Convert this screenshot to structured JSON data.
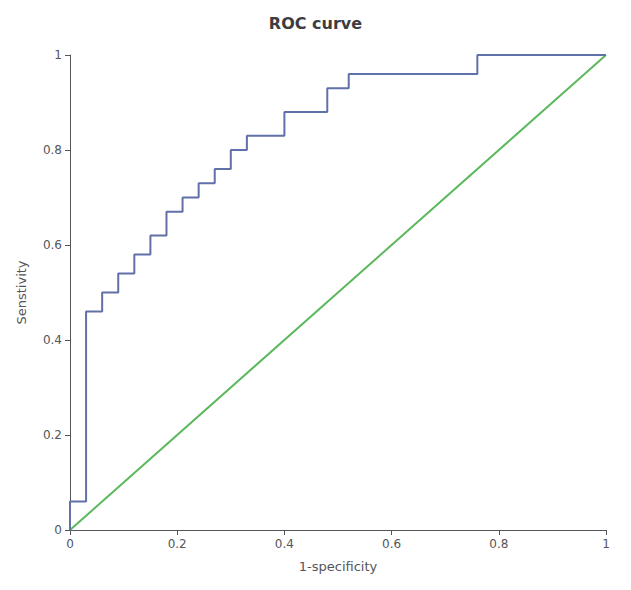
{
  "chart_data": {
    "type": "line",
    "title": "ROC curve",
    "xlabel": "1-specificity",
    "ylabel": "Senstivity",
    "xlim": [
      0.0,
      1.0
    ],
    "ylim": [
      0.0,
      1.0
    ],
    "xticks": [
      0,
      0.2,
      0.4,
      0.6,
      0.8,
      1
    ],
    "yticks": [
      0,
      0.2,
      0.4,
      0.6,
      0.8,
      1
    ],
    "grid": false,
    "series": [
      {
        "color": "#5cb85c",
        "x": [
          0,
          1
        ],
        "values": [
          0,
          1
        ]
      },
      {
        "color": "#6070a8",
        "x": [
          0.0,
          0.0,
          0.03,
          0.03,
          0.06,
          0.06,
          0.09,
          0.09,
          0.12,
          0.12,
          0.15,
          0.15,
          0.18,
          0.18,
          0.21,
          0.21,
          0.24,
          0.24,
          0.27,
          0.27,
          0.3,
          0.3,
          0.33,
          0.33,
          0.4,
          0.4,
          0.48,
          0.48,
          0.52,
          0.52,
          0.76,
          0.76,
          1.0
        ],
        "values": [
          0.0,
          0.06,
          0.06,
          0.46,
          0.46,
          0.5,
          0.5,
          0.54,
          0.54,
          0.58,
          0.58,
          0.62,
          0.62,
          0.67,
          0.67,
          0.7,
          0.7,
          0.73,
          0.73,
          0.76,
          0.76,
          0.8,
          0.8,
          0.83,
          0.83,
          0.88,
          0.88,
          0.93,
          0.93,
          0.96,
          0.96,
          1.0,
          1.0
        ]
      }
    ]
  }
}
